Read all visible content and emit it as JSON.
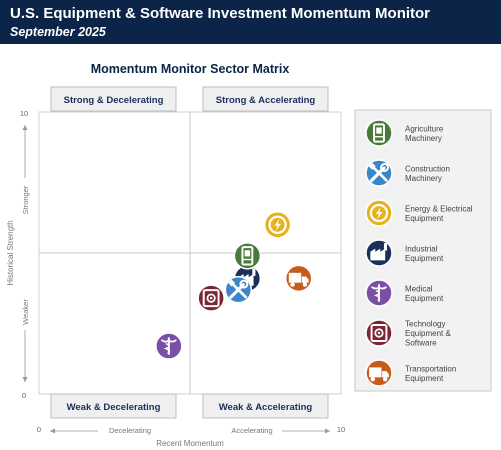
{
  "header": {
    "title": "U.S. Equipment & Software Investment Momentum Monitor",
    "subtitle": "September 2025"
  },
  "colors": {
    "banner": "#0b2447",
    "agriculture": "#4a7a3a",
    "construction": "#3d86c6",
    "energy": "#e6b31e",
    "industrial": "#1a2f5a",
    "medical": "#7b4fa6",
    "technology": "#7d2533",
    "transportation": "#c85a1a"
  },
  "chart_data": {
    "type": "scatter",
    "title": "Momentum Monitor Sector Matrix",
    "xlabel": "Recent Momentum",
    "ylabel": "Historical Strength",
    "xlim": [
      0,
      10
    ],
    "ylim": [
      0,
      10
    ],
    "x_ticks": [
      "0",
      "10"
    ],
    "y_ticks": [
      "0",
      "10"
    ],
    "x_axis_notes": {
      "left": "Decelerating",
      "right": "Accelerating"
    },
    "y_axis_notes": {
      "bottom": "Weaker",
      "top": "Stronger"
    },
    "quadrants": {
      "top_left": "Strong & Decelerating",
      "top_right": "Strong & Accelerating",
      "bottom_left": "Weak & Decelerating",
      "bottom_right": "Weak & Accelerating"
    },
    "points": [
      {
        "name": "Agriculture Machinery",
        "x": 6.9,
        "y": 4.9,
        "icon": "tractor-icon",
        "color_key": "agriculture"
      },
      {
        "name": "Construction Machinery",
        "x": 6.6,
        "y": 3.7,
        "icon": "tools-icon",
        "color_key": "construction"
      },
      {
        "name": "Energy & Electrical Equipment",
        "x": 7.9,
        "y": 6.0,
        "icon": "lightning-icon",
        "color_key": "energy"
      },
      {
        "name": "Industrial Equipment",
        "x": 6.9,
        "y": 4.1,
        "icon": "factory-icon",
        "color_key": "industrial"
      },
      {
        "name": "Medical Equipment",
        "x": 4.3,
        "y": 1.7,
        "icon": "caduceus-icon",
        "color_key": "medical"
      },
      {
        "name": "Technology Equipment & Software",
        "x": 5.7,
        "y": 3.4,
        "icon": "computer-icon",
        "color_key": "technology"
      },
      {
        "name": "Transportation Equipment",
        "x": 8.6,
        "y": 4.1,
        "icon": "truck-icon",
        "color_key": "transportation"
      }
    ],
    "legend": {
      "position": "right",
      "items": [
        {
          "lines": [
            "Agriculture",
            "Machinery"
          ],
          "icon": "tractor-icon",
          "color_key": "agriculture"
        },
        {
          "lines": [
            "Construction",
            "Machinery"
          ],
          "icon": "tools-icon",
          "color_key": "construction"
        },
        {
          "lines": [
            "Energy & Electrical",
            "Equipment"
          ],
          "icon": "lightning-icon",
          "color_key": "energy"
        },
        {
          "lines": [
            "Industrial",
            "Equipment"
          ],
          "icon": "factory-icon",
          "color_key": "industrial"
        },
        {
          "lines": [
            "Medical",
            "Equipment"
          ],
          "icon": "caduceus-icon",
          "color_key": "medical"
        },
        {
          "lines": [
            "Technology",
            "Equipment &",
            "Software"
          ],
          "icon": "computer-icon",
          "color_key": "technology"
        },
        {
          "lines": [
            "Transportation",
            "Equipment"
          ],
          "icon": "truck-icon",
          "color_key": "transportation"
        }
      ]
    },
    "grid": false
  }
}
